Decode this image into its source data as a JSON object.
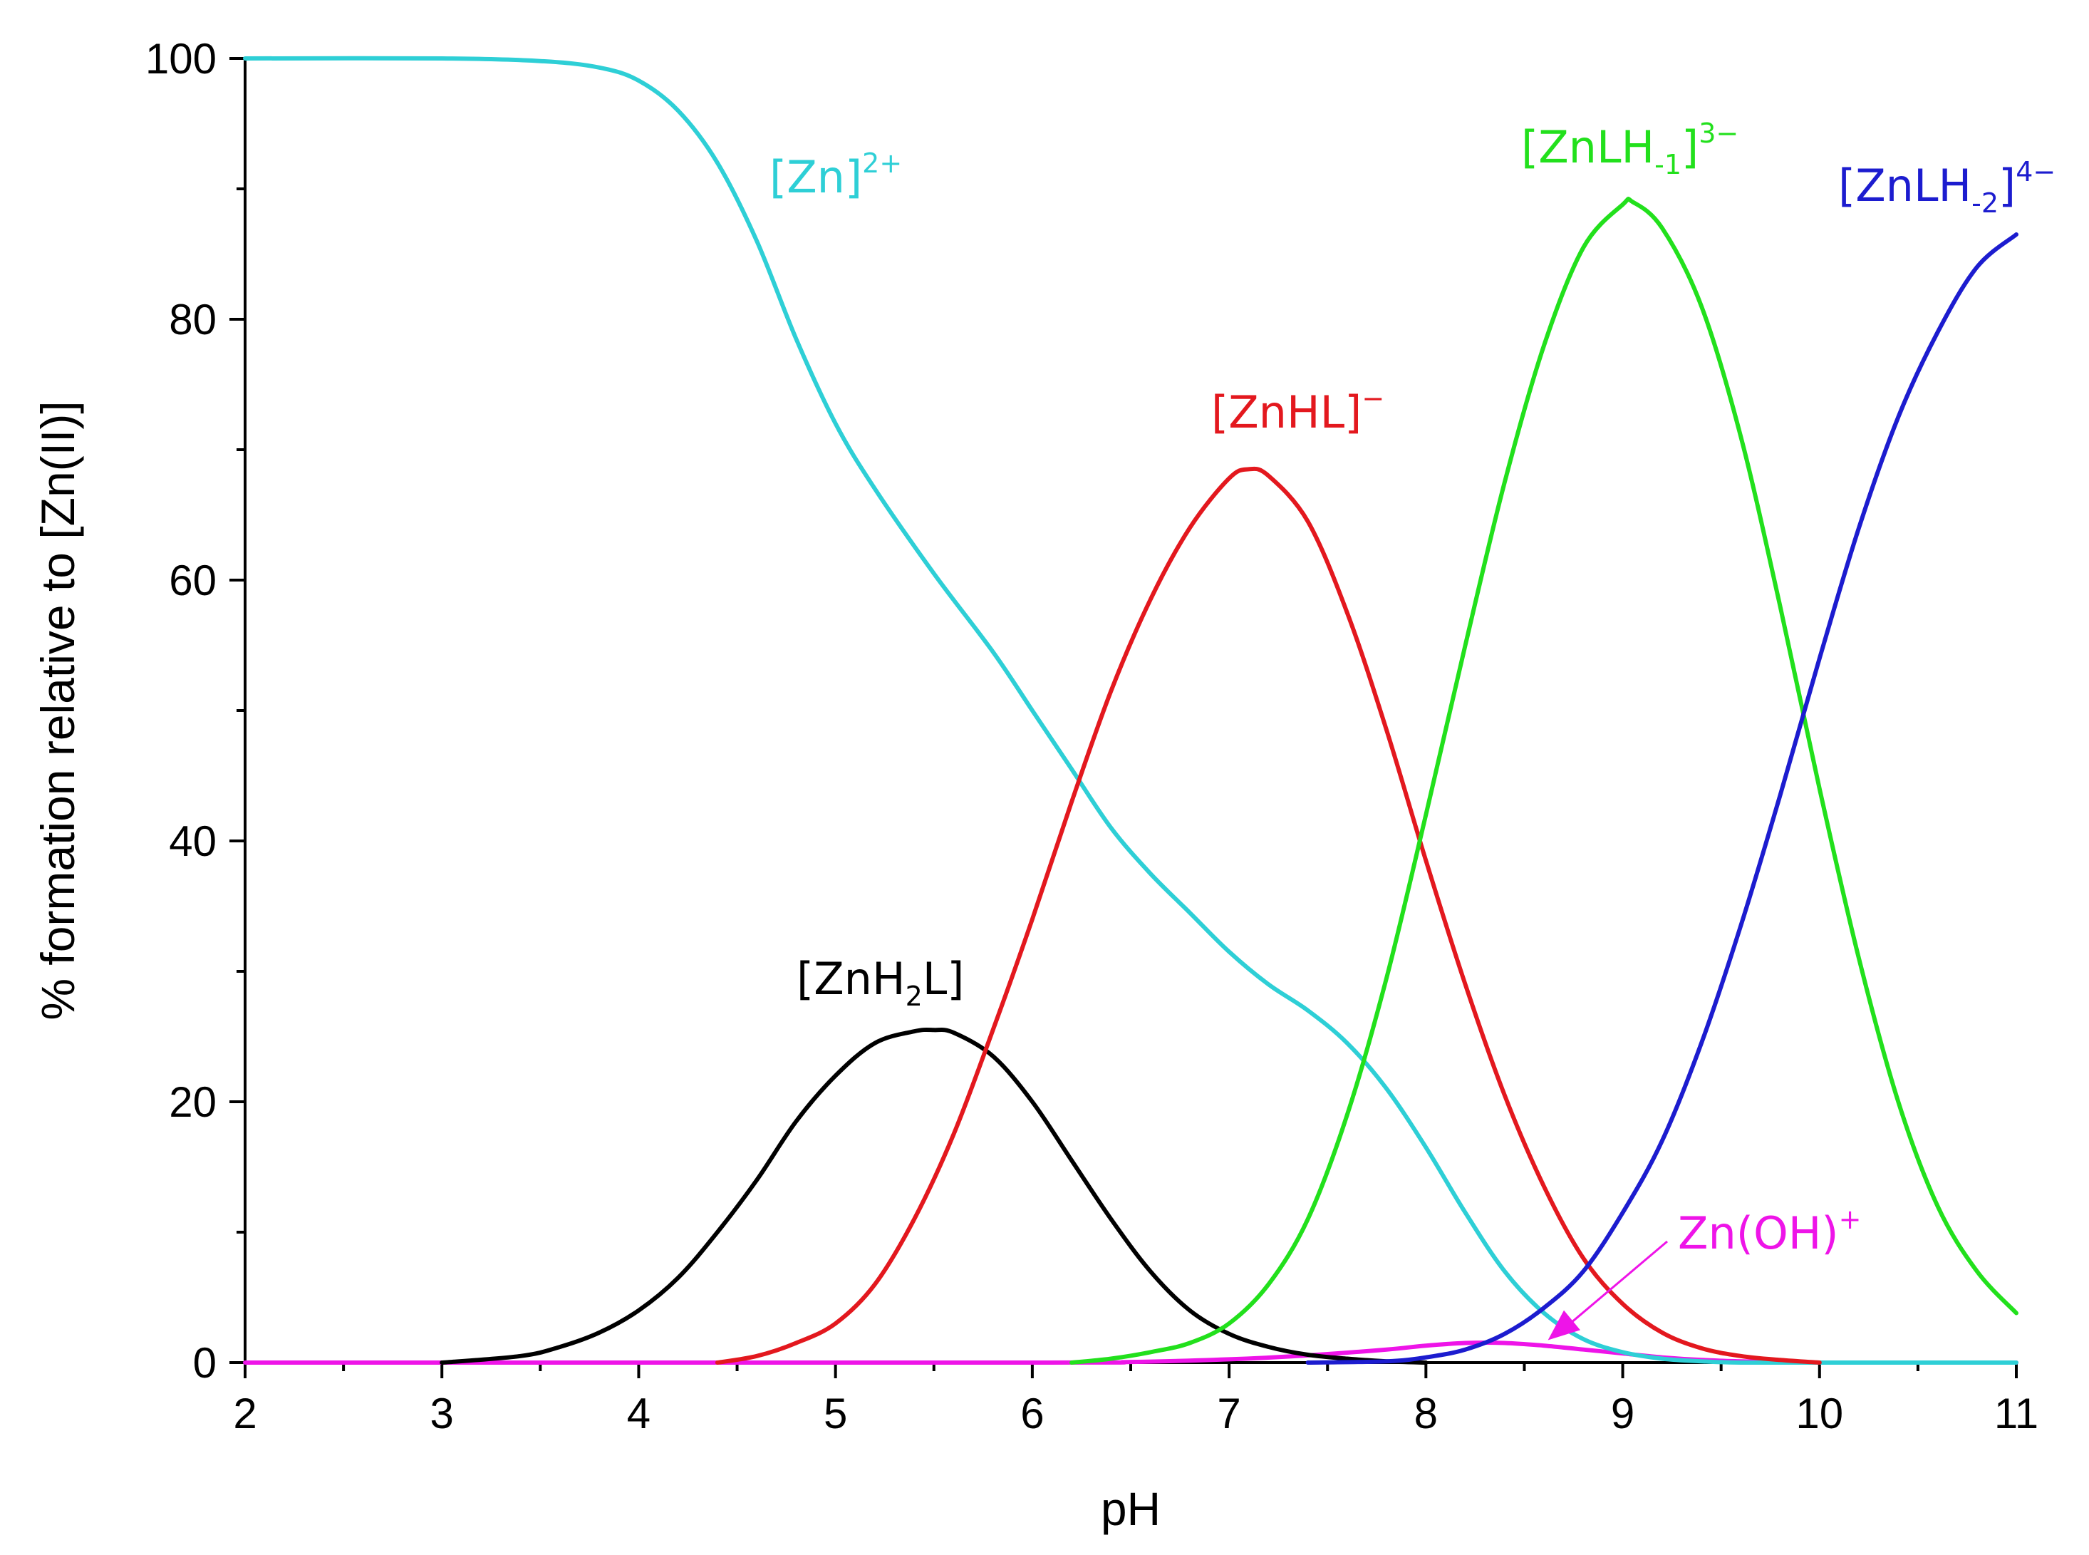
{
  "chart_data": {
    "type": "line",
    "xlabel": "pH",
    "ylabel": "% formation relative to [Zn(II)]",
    "xlim": [
      2,
      11
    ],
    "ylim": [
      0,
      100
    ],
    "xticks": [
      2,
      3,
      4,
      5,
      6,
      7,
      8,
      9,
      10,
      11
    ],
    "yticks": [
      0,
      20,
      40,
      60,
      80,
      100
    ],
    "x_minor_step": 0.5,
    "y_minor_step": 10,
    "grid": false,
    "legend": "none",
    "series": [
      {
        "name": "[Zn]2+",
        "label_parts": [
          {
            "t": "[Zn]"
          },
          {
            "t": "2+",
            "s": "sup"
          }
        ],
        "color": "#2ecfd6",
        "x": [
          2.0,
          3.0,
          3.5,
          3.8,
          4.0,
          4.2,
          4.4,
          4.6,
          4.8,
          5.0,
          5.2,
          5.5,
          5.8,
          6.0,
          6.2,
          6.4,
          6.6,
          6.8,
          7.0,
          7.2,
          7.4,
          7.6,
          7.8,
          8.0,
          8.2,
          8.4,
          8.6,
          8.8,
          9.0,
          9.2,
          9.4,
          9.6,
          10.0,
          11.0
        ],
        "y": [
          100,
          100,
          99.8,
          99.3,
          98.3,
          96.0,
          92.0,
          86.0,
          78.5,
          72.0,
          67.0,
          60.5,
          54.5,
          50.0,
          45.5,
          41.0,
          37.5,
          34.5,
          31.5,
          29.0,
          27.0,
          24.5,
          21.0,
          16.5,
          11.5,
          7.0,
          3.8,
          1.8,
          0.8,
          0.3,
          0.1,
          0.0,
          0.0,
          0.0
        ]
      },
      {
        "name": "[ZnH2L]",
        "label_parts": [
          {
            "t": "[ZnH"
          },
          {
            "t": "2",
            "s": "sub"
          },
          {
            "t": "L]"
          }
        ],
        "color": "#000000",
        "x": [
          3.0,
          3.4,
          3.6,
          3.8,
          4.0,
          4.2,
          4.4,
          4.6,
          4.8,
          5.0,
          5.2,
          5.4,
          5.5,
          5.6,
          5.8,
          6.0,
          6.2,
          6.4,
          6.6,
          6.8,
          7.0,
          7.2,
          7.4,
          7.6,
          7.8,
          8.0
        ],
        "y": [
          0.0,
          0.5,
          1.2,
          2.3,
          4.0,
          6.5,
          10.0,
          14.0,
          18.5,
          22.0,
          24.5,
          25.4,
          25.5,
          25.3,
          23.5,
          20.0,
          15.5,
          11.0,
          7.0,
          4.0,
          2.2,
          1.2,
          0.6,
          0.3,
          0.1,
          0.0
        ]
      },
      {
        "name": "[ZnHL]−",
        "label_parts": [
          {
            "t": "[ZnHL]"
          },
          {
            "t": "−",
            "s": "sup"
          }
        ],
        "color": "#e3181e",
        "x": [
          4.4,
          4.6,
          4.8,
          5.0,
          5.2,
          5.4,
          5.6,
          5.8,
          6.0,
          6.2,
          6.4,
          6.6,
          6.8,
          7.0,
          7.1,
          7.2,
          7.4,
          7.6,
          7.8,
          8.0,
          8.2,
          8.4,
          8.6,
          8.8,
          9.0,
          9.2,
          9.4,
          9.6,
          9.8,
          10.0
        ],
        "y": [
          0.0,
          0.5,
          1.5,
          3.0,
          6.0,
          11.0,
          17.5,
          25.5,
          34.0,
          43.0,
          51.5,
          58.5,
          64.0,
          67.8,
          68.5,
          68.0,
          64.5,
          57.5,
          48.5,
          38.5,
          29.0,
          20.5,
          13.5,
          8.0,
          4.5,
          2.3,
          1.1,
          0.5,
          0.2,
          0.0
        ]
      },
      {
        "name": "[ZnLH-1]3−",
        "label_parts": [
          {
            "t": "[ZnLH"
          },
          {
            "t": "-1",
            "s": "sub"
          },
          {
            "t": "]"
          },
          {
            "t": "3−",
            "s": "sup"
          }
        ],
        "color": "#22e01c",
        "x": [
          6.2,
          6.4,
          6.6,
          6.8,
          7.0,
          7.2,
          7.4,
          7.6,
          7.8,
          8.0,
          8.2,
          8.4,
          8.6,
          8.8,
          9.0,
          9.05,
          9.2,
          9.4,
          9.6,
          9.8,
          10.0,
          10.2,
          10.4,
          10.6,
          10.8,
          11.0
        ],
        "y": [
          0.0,
          0.3,
          0.8,
          1.5,
          3.0,
          6.0,
          11.0,
          19.0,
          29.5,
          42.0,
          55.0,
          67.5,
          78.0,
          85.5,
          88.8,
          89.0,
          87.0,
          81.0,
          71.0,
          58.0,
          44.0,
          31.0,
          20.0,
          12.0,
          7.0,
          3.8
        ]
      },
      {
        "name": "[ZnLH-2]4−",
        "label_parts": [
          {
            "t": "[ZnLH"
          },
          {
            "t": "-2",
            "s": "sub"
          },
          {
            "t": "]"
          },
          {
            "t": "4−",
            "s": "sup"
          }
        ],
        "color": "#1c1ccf",
        "x": [
          7.4,
          7.8,
          8.0,
          8.2,
          8.4,
          8.6,
          8.8,
          9.0,
          9.2,
          9.4,
          9.6,
          9.8,
          10.0,
          10.2,
          10.4,
          10.6,
          10.8,
          11.0
        ],
        "y": [
          0.0,
          0.1,
          0.4,
          1.0,
          2.2,
          4.2,
          7.0,
          11.5,
          17.0,
          24.5,
          33.5,
          43.5,
          54.0,
          64.0,
          72.5,
          79.0,
          84.0,
          86.5
        ]
      },
      {
        "name": "Zn(OH)+",
        "label_parts": [
          {
            "t": "Zn(OH)"
          },
          {
            "t": "+",
            "s": "sup"
          }
        ],
        "color": "#ee14e8",
        "x": [
          2.0,
          6.0,
          6.5,
          7.0,
          7.4,
          7.8,
          8.0,
          8.2,
          8.4,
          8.6,
          8.8,
          9.0,
          9.2,
          9.4,
          9.6,
          9.8,
          10.0,
          11.0
        ],
        "y": [
          0.0,
          0.0,
          0.05,
          0.25,
          0.55,
          1.0,
          1.3,
          1.5,
          1.5,
          1.3,
          1.0,
          0.7,
          0.4,
          0.2,
          0.1,
          0.05,
          0.0,
          0.0
        ]
      }
    ]
  }
}
